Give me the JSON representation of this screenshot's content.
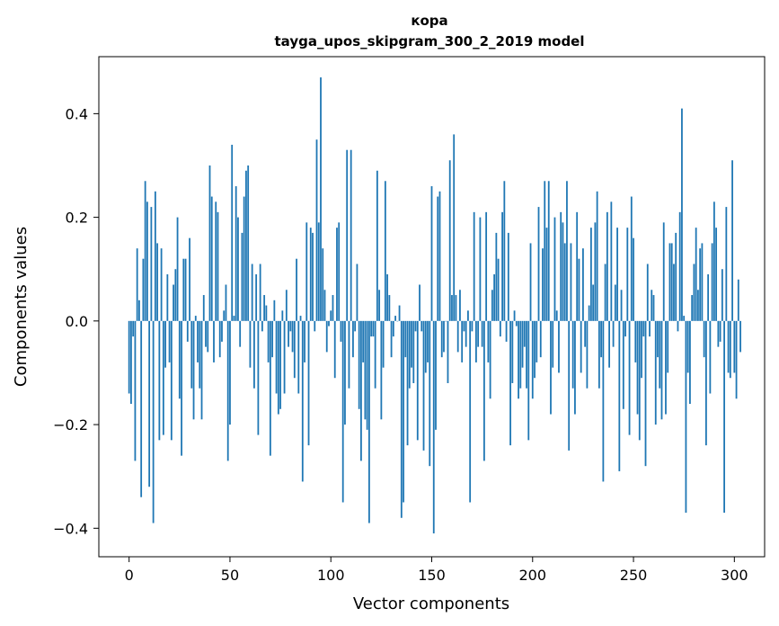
{
  "chart_data": {
    "type": "bar",
    "title": "кора",
    "subtitle": "tayga_upos_skipgram_300_2_2019 model",
    "xlabel": "Vector components",
    "ylabel": "Components values",
    "xlim": [
      -15,
      315
    ],
    "ylim": [
      -0.455,
      0.51
    ],
    "xticks": [
      0,
      50,
      100,
      150,
      200,
      250,
      300
    ],
    "xtick_labels": [
      "0",
      "50",
      "100",
      "150",
      "200",
      "250",
      "300"
    ],
    "yticks": [
      -0.4,
      -0.2,
      0.0,
      0.2,
      0.4
    ],
    "ytick_labels": [
      "−0.4",
      "−0.2",
      "0.0",
      "0.2",
      "0.4"
    ],
    "grid": false,
    "bar_color": "#1f77b4",
    "series": [
      {
        "values": [
          -0.14,
          -0.16,
          -0.03,
          -0.27,
          0.14,
          0.04,
          -0.34,
          0.12,
          0.27,
          0.23,
          -0.32,
          0.22,
          -0.39,
          0.25,
          0.15,
          -0.23,
          0.14,
          -0.22,
          -0.09,
          0.09,
          -0.08,
          -0.23,
          0.07,
          0.1,
          0.2,
          -0.15,
          -0.26,
          0.12,
          0.12,
          -0.04,
          0.16,
          -0.13,
          -0.19,
          0.01,
          -0.08,
          -0.13,
          -0.19,
          0.05,
          -0.05,
          -0.06,
          0.3,
          0.24,
          -0.08,
          0.23,
          0.21,
          -0.07,
          -0.04,
          0.02,
          0.07,
          -0.27,
          -0.2,
          0.34,
          0.01,
          0.26,
          0.2,
          -0.05,
          0.17,
          0.24,
          0.29,
          0.3,
          -0.09,
          0.11,
          -0.13,
          0.09,
          -0.22,
          0.11,
          -0.02,
          0.05,
          0.03,
          -0.08,
          -0.26,
          -0.07,
          0.04,
          -0.14,
          -0.18,
          -0.17,
          0.02,
          -0.14,
          0.06,
          -0.05,
          -0.02,
          -0.06,
          -0.11,
          0.12,
          -0.14,
          0.01,
          -0.31,
          -0.08,
          0.19,
          -0.24,
          0.18,
          0.17,
          -0.02,
          0.35,
          0.19,
          0.47,
          0.14,
          0.06,
          -0.06,
          -0.01,
          0.02,
          0.05,
          -0.11,
          0.18,
          0.19,
          -0.04,
          -0.35,
          -0.2,
          0.33,
          -0.13,
          0.33,
          -0.07,
          -0.02,
          0.11,
          -0.17,
          -0.27,
          -0.08,
          -0.19,
          -0.21,
          -0.39,
          -0.03,
          -0.03,
          -0.13,
          0.29,
          0.06,
          -0.19,
          -0.09,
          0.27,
          0.09,
          0.05,
          -0.07,
          -0.03,
          0.01,
          0.0,
          0.03,
          -0.38,
          -0.35,
          -0.07,
          -0.24,
          -0.13,
          -0.09,
          -0.12,
          -0.02,
          -0.23,
          0.07,
          -0.02,
          -0.25,
          -0.1,
          -0.08,
          -0.28,
          0.26,
          -0.41,
          -0.21,
          0.24,
          0.25,
          -0.07,
          -0.06,
          0.0,
          -0.12,
          0.31,
          0.05,
          0.36,
          0.05,
          -0.06,
          0.06,
          -0.08,
          -0.02,
          -0.05,
          0.02,
          -0.35,
          -0.02,
          0.21,
          -0.08,
          -0.05,
          0.2,
          -0.05,
          -0.27,
          0.21,
          -0.08,
          -0.15,
          0.06,
          0.09,
          0.17,
          0.12,
          -0.03,
          0.21,
          0.27,
          -0.04,
          0.17,
          -0.24,
          -0.12,
          0.02,
          -0.01,
          -0.15,
          -0.13,
          -0.09,
          -0.05,
          -0.13,
          -0.23,
          0.15,
          -0.15,
          -0.11,
          -0.08,
          0.22,
          -0.07,
          0.14,
          0.27,
          0.18,
          0.27,
          -0.18,
          -0.09,
          0.2,
          0.02,
          -0.1,
          0.21,
          0.19,
          0.15,
          0.27,
          -0.25,
          0.15,
          -0.13,
          -0.18,
          0.21,
          0.12,
          -0.1,
          0.14,
          -0.05,
          -0.13,
          0.03,
          0.18,
          0.07,
          0.19,
          0.25,
          -0.13,
          -0.07,
          -0.31,
          0.11,
          0.21,
          -0.09,
          0.23,
          -0.05,
          0.07,
          0.18,
          -0.29,
          0.06,
          -0.17,
          -0.03,
          0.18,
          -0.22,
          0.24,
          0.16,
          -0.08,
          -0.18,
          -0.23,
          -0.11,
          -0.03,
          -0.28,
          0.11,
          -0.03,
          0.06,
          0.05,
          -0.2,
          -0.07,
          -0.13,
          -0.19,
          0.19,
          -0.18,
          -0.1,
          0.15,
          0.15,
          0.11,
          0.17,
          -0.02,
          0.21,
          0.41,
          0.01,
          -0.37,
          -0.1,
          -0.16,
          0.05,
          0.11,
          0.18,
          0.06,
          0.14,
          0.15,
          -0.07,
          -0.24,
          0.09,
          -0.14,
          0.15,
          0.23,
          0.18,
          -0.05,
          -0.04,
          0.1,
          -0.37,
          0.22,
          -0.1,
          -0.11,
          0.31,
          -0.1,
          -0.15,
          0.08,
          -0.06
        ]
      }
    ]
  }
}
